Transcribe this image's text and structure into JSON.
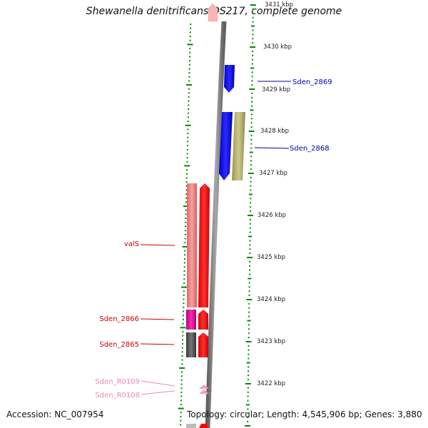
{
  "title": "Shewanella denitrificans OS217, complete genome",
  "accession": "Accession: NC_007954",
  "footer": "Topology: circular; Length: 4,545,906 bp; Genes: 3,880",
  "axis": {
    "tick_labels": [
      "3431 kbp",
      "3430 kbp",
      "3429 kbp",
      "3428 kbp",
      "3427 kbp",
      "3426 kbp",
      "3425 kbp",
      "3424 kbp",
      "3423 kbp",
      "3422 kbp"
    ]
  },
  "genes": [
    {
      "label": "Sden_2869",
      "color": "#0000aa",
      "feature_color": "#0000ee"
    },
    {
      "label": "Sden_2868",
      "color": "#0000aa",
      "feature_color": "#0000ee"
    },
    {
      "label": "valS",
      "color": "#cc0000",
      "feature_color": "#f08080"
    },
    {
      "label": "Sden_2866",
      "color": "#cc0000",
      "feature_color": "#e0109a"
    },
    {
      "label": "Sden_2865",
      "color": "#cc0000",
      "feature_color": "#555555"
    },
    {
      "label": "Sden_R0109",
      "color": "#ee88aa",
      "feature_color": "#ffb0c8"
    },
    {
      "label": "Sden_R0108",
      "color": "#ee88aa",
      "feature_color": "#ffb0c8"
    }
  ],
  "colors": {
    "tick_green": "#008800",
    "backbone": "#808080",
    "cds_red": "#ff0000",
    "olive": "#b5b06a"
  }
}
